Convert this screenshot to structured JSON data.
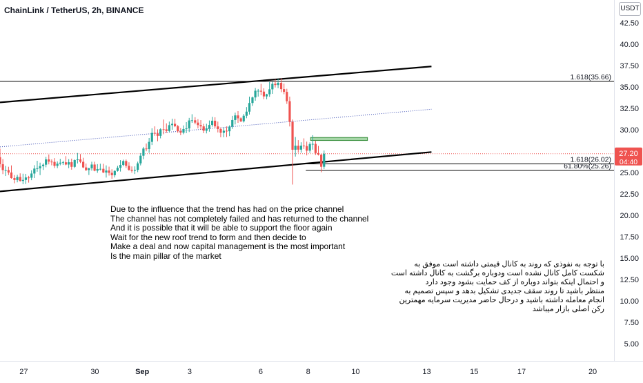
{
  "header": {
    "title": "ChainLink / TetherUS, 2h, BINANCE",
    "currency_button": "USDT"
  },
  "colors": {
    "bull": "#26a69a",
    "bear": "#ef5350",
    "channel": "#000000",
    "midline": "#3f51b5",
    "zone_fill": "#a5d6a7",
    "zone_border": "#388e3c",
    "current_price_bg": "#ef5350",
    "fib_line": "#000000"
  },
  "annotations": {
    "english_note": "Due to the influence that the trend has had on the price channel\nThe channel has not completely failed and has returned to the channel\nAnd it is possible that it will be able to support the floor again\nWait for the new roof trend to form and then decide to\nMake a deal and now capital management is the most important\nIs the main pillar of the market",
    "persian_note": "با توجه به نفوذی که روند به کانال قیمتی داشته است موفق به\nشکست کامل کانال نشده است ودوباره برگشت به کانال داشته است\nو احتمال اینکه بتواند دوباره از کف حمایت بشود وجود دارد\nمنتظر باشید تا روند سقف جدیدی تشکیل بدهد و سپس تصمیم به\nانجام معامله داشته باشید و درحال حاضر مدیریت سرمایه مهمترین\nرکن اصلی بازار میباشد"
  },
  "chart_data": {
    "type": "candlestick",
    "symbol": "ChainLink / TetherUS",
    "interval": "2h",
    "exchange": "BINANCE",
    "quote": "USDT",
    "ylim": [
      3.0,
      45.0
    ],
    "x_range_days": [
      26.0,
      51.9
    ],
    "y_ticks": [
      5.0,
      7.5,
      10.0,
      12.5,
      15.0,
      17.5,
      20.0,
      22.5,
      25.0,
      27.5,
      30.0,
      32.5,
      35.0,
      37.5,
      40.0,
      42.5
    ],
    "x_ticks": [
      {
        "day": 27,
        "label": "27"
      },
      {
        "day": 30,
        "label": "30"
      },
      {
        "day": 32,
        "label": "Sep"
      },
      {
        "day": 34,
        "label": "3"
      },
      {
        "day": 37,
        "label": "6"
      },
      {
        "day": 39,
        "label": "8"
      },
      {
        "day": 41,
        "label": "10"
      },
      {
        "day": 44,
        "label": "13"
      },
      {
        "day": 46,
        "label": "15"
      },
      {
        "day": 48,
        "label": "17"
      },
      {
        "day": 51,
        "label": "20"
      }
    ],
    "current_price": {
      "value": 27.2,
      "label": "27.20",
      "countdown": "04:40"
    },
    "fib_levels": [
      {
        "label": "1.618(35.66)",
        "value": 35.66
      },
      {
        "label": "1.618(26.02)",
        "value": 26.02
      },
      {
        "label": "61.80%(25.26)",
        "value": 25.26
      }
    ],
    "channel": {
      "upper": [
        [
          26.0,
          33.2
        ],
        [
          44.2,
          37.4
        ]
      ],
      "lower": [
        [
          26.0,
          22.8
        ],
        [
          44.2,
          27.4
        ]
      ],
      "mid": [
        [
          26.0,
          28.0
        ],
        [
          44.2,
          32.4
        ]
      ]
    },
    "zone": {
      "day_from": 39.1,
      "day_to": 41.5,
      "low": 28.75,
      "high": 29.1
    },
    "candles": [
      [
        26.0,
        26.8,
        27.8,
        25.6,
        25.98
      ],
      [
        26.12,
        25.98,
        26.58,
        24.82,
        25.29
      ],
      [
        26.24,
        25.29,
        25.79,
        24.6,
        25.29
      ],
      [
        26.36,
        25.29,
        25.68,
        24.72,
        25.01
      ],
      [
        26.48,
        25.01,
        25.84,
        24.29,
        24.36
      ],
      [
        26.61,
        24.36,
        24.71,
        23.75,
        24.13
      ],
      [
        26.73,
        24.13,
        24.74,
        23.86,
        24.49
      ],
      [
        26.85,
        24.49,
        24.91,
        23.95,
        24.02
      ],
      [
        26.97,
        24.02,
        24.87,
        23.64,
        24.14
      ],
      [
        27.09,
        24.14,
        24.85,
        23.67,
        24.43
      ],
      [
        27.21,
        24.43,
        24.62,
        23.83,
        24.4
      ],
      [
        27.33,
        24.4,
        25.27,
        24.11,
        24.89
      ],
      [
        27.45,
        24.89,
        25.86,
        24.36,
        25.47
      ],
      [
        27.57,
        25.47,
        26.38,
        25.1,
        25.5
      ],
      [
        27.69,
        25.5,
        26.16,
        24.7,
        25.75
      ],
      [
        27.82,
        25.75,
        26.09,
        25.31,
        25.92
      ],
      [
        27.94,
        25.92,
        26.84,
        25.62,
        26.54
      ],
      [
        28.06,
        26.54,
        27.12,
        25.96,
        26.28
      ],
      [
        28.18,
        26.28,
        26.54,
        25.85,
        26.25
      ],
      [
        28.3,
        26.25,
        26.69,
        25.53,
        25.79
      ],
      [
        28.42,
        25.79,
        26.31,
        25.52,
        26.04
      ],
      [
        28.54,
        26.04,
        26.61,
        25.85,
        26.16
      ],
      [
        28.66,
        26.16,
        26.39,
        25.89,
        26.2
      ],
      [
        28.78,
        26.2,
        26.92,
        25.85,
        25.94
      ],
      [
        28.9,
        25.94,
        26.57,
        25.52,
        26.21
      ],
      [
        29.02,
        26.21,
        26.63,
        25.34,
        25.67
      ],
      [
        29.15,
        25.67,
        26.53,
        25.54,
        26.46
      ],
      [
        29.27,
        26.46,
        27.29,
        26.07,
        26.54
      ],
      [
        29.39,
        26.54,
        27.16,
        26.11,
        26.26
      ],
      [
        29.51,
        26.26,
        26.73,
        25.52,
        25.6
      ],
      [
        29.63,
        25.6,
        26.06,
        25.17,
        25.3
      ],
      [
        29.75,
        25.3,
        25.56,
        24.72,
        25.51
      ],
      [
        29.87,
        25.51,
        26.27,
        25.23,
        25.94
      ],
      [
        29.99,
        25.94,
        26.27,
        25.15,
        25.22
      ],
      [
        30.11,
        25.22,
        25.99,
        24.97,
        25.41
      ],
      [
        30.23,
        25.41,
        26.04,
        25.25,
        25.44
      ],
      [
        30.36,
        25.44,
        26.03,
        24.94,
        25.01
      ],
      [
        30.48,
        25.01,
        25.84,
        24.42,
        25.24
      ],
      [
        30.6,
        25.24,
        25.69,
        24.65,
        24.97
      ],
      [
        30.72,
        24.97,
        25.39,
        24.28,
        24.69
      ],
      [
        30.84,
        24.69,
        25.27,
        24.43,
        25.2
      ],
      [
        30.96,
        25.2,
        25.79,
        25.11,
        25.56
      ],
      [
        31.08,
        25.56,
        26.45,
        25.12,
        25.89
      ],
      [
        31.2,
        25.89,
        26.51,
        25.74,
        26.35
      ],
      [
        31.32,
        26.35,
        26.53,
        25.54,
        25.79
      ],
      [
        31.44,
        25.79,
        26.2,
        25.21,
        25.33
      ],
      [
        31.56,
        25.33,
        25.72,
        24.99,
        25.22
      ],
      [
        31.69,
        25.22,
        25.73,
        24.83,
        25.32
      ],
      [
        31.81,
        25.32,
        26.28,
        25.05,
        26.08
      ],
      [
        31.93,
        26.08,
        27.28,
        25.84,
        26.97
      ],
      [
        32.05,
        26.97,
        28.0,
        26.56,
        27.81
      ],
      [
        32.17,
        27.81,
        28.4,
        27.49,
        27.75
      ],
      [
        32.29,
        27.75,
        29.04,
        27.31,
        28.59
      ],
      [
        32.41,
        28.59,
        30.17,
        28.22,
        29.64
      ],
      [
        32.53,
        29.64,
        30.4,
        29.3,
        29.58
      ],
      [
        32.65,
        29.58,
        30.05,
        28.66,
        29.29
      ],
      [
        32.77,
        29.29,
        30.17,
        29.0,
        30.06
      ],
      [
        32.9,
        30.06,
        31.2,
        29.48,
        30.05
      ],
      [
        33.02,
        30.05,
        30.75,
        29.63,
        29.86
      ],
      [
        33.14,
        29.86,
        30.96,
        29.68,
        30.54
      ],
      [
        33.26,
        30.54,
        31.3,
        30.0,
        30.7
      ],
      [
        33.38,
        30.7,
        31.29,
        30.31,
        30.41
      ],
      [
        33.5,
        30.41,
        30.57,
        29.64,
        29.83
      ],
      [
        33.62,
        29.83,
        30.2,
        29.37,
        29.66
      ],
      [
        33.74,
        29.66,
        30.51,
        29.48,
        30.09
      ],
      [
        33.86,
        30.09,
        30.89,
        29.6,
        30.16
      ],
      [
        33.98,
        30.16,
        31.39,
        29.74,
        31.09
      ],
      [
        34.1,
        31.09,
        31.82,
        30.81,
        31.11
      ],
      [
        34.23,
        31.11,
        31.47,
        30.64,
        30.84
      ],
      [
        34.35,
        30.84,
        31.24,
        30.16,
        30.55
      ],
      [
        34.47,
        30.55,
        31.13,
        30.01,
        30.4
      ],
      [
        34.59,
        30.4,
        30.7,
        29.6,
        29.89
      ],
      [
        34.71,
        29.89,
        30.7,
        29.58,
        30.16
      ],
      [
        34.83,
        30.16,
        31.09,
        29.78,
        30.56
      ],
      [
        34.95,
        30.56,
        31.51,
        30.36,
        31.06
      ],
      [
        35.07,
        31.06,
        31.46,
        30.2,
        30.4
      ],
      [
        35.19,
        30.4,
        30.96,
        29.69,
        30.09
      ],
      [
        35.31,
        30.09,
        30.28,
        29.13,
        29.65
      ],
      [
        35.44,
        29.65,
        30.26,
        29.13,
        29.89
      ],
      [
        35.56,
        29.89,
        30.39,
        29.15,
        29.83
      ],
      [
        35.68,
        29.83,
        30.52,
        29.26,
        30.37
      ],
      [
        35.8,
        30.37,
        31.63,
        30.11,
        31.14
      ],
      [
        35.92,
        31.14,
        32.0,
        30.62,
        31.68
      ],
      [
        36.04,
        31.68,
        32.18,
        30.81,
        31.34
      ],
      [
        36.16,
        31.34,
        31.45,
        30.89,
        30.99
      ],
      [
        36.28,
        30.99,
        31.85,
        30.85,
        31.64
      ],
      [
        36.4,
        31.64,
        32.65,
        31.35,
        32.12
      ],
      [
        36.52,
        32.12,
        33.87,
        31.78,
        33.13
      ],
      [
        36.65,
        33.13,
        33.88,
        32.79,
        33.78
      ],
      [
        36.77,
        33.78,
        34.88,
        33.4,
        34.56
      ],
      [
        36.89,
        34.56,
        34.77,
        33.88,
        34.56
      ],
      [
        37.01,
        34.56,
        35.36,
        34.03,
        34.46
      ],
      [
        37.13,
        34.46,
        34.85,
        33.57,
        33.9
      ],
      [
        37.25,
        33.9,
        34.21,
        33.56,
        34.15
      ],
      [
        37.37,
        34.15,
        35.58,
        33.85,
        34.73
      ],
      [
        37.49,
        34.73,
        35.62,
        34.2,
        35.37
      ],
      [
        37.61,
        35.37,
        35.88,
        34.94,
        35.23
      ],
      [
        37.73,
        35.23,
        35.96,
        34.86,
        35.49
      ],
      [
        37.86,
        35.49,
        36.0,
        34.39,
        34.75
      ],
      [
        37.98,
        34.75,
        35.4,
        34.15,
        34.43
      ],
      [
        38.1,
        34.43,
        34.79,
        33.02,
        33.34
      ],
      [
        38.22,
        33.34,
        33.87,
        30.39,
        30.93
      ],
      [
        38.34,
        30.93,
        31.2,
        23.6,
        27.67
      ],
      [
        38.46,
        27.67,
        29.16,
        26.87,
        28.14
      ],
      [
        38.58,
        28.14,
        28.79,
        27.32,
        27.68
      ],
      [
        38.7,
        27.68,
        28.54,
        27.33,
        28.15
      ],
      [
        38.82,
        28.15,
        29.0,
        27.76,
        28.1
      ],
      [
        38.94,
        28.1,
        28.62,
        27.01,
        27.56
      ],
      [
        39.07,
        27.56,
        28.53,
        27.3,
        28.33
      ],
      [
        39.19,
        28.33,
        29.37,
        27.68,
        28.35
      ],
      [
        39.31,
        28.35,
        28.72,
        27.06,
        27.28
      ],
      [
        39.43,
        27.28,
        28.12,
        27.0,
        27.1
      ],
      [
        39.55,
        27.1,
        27.2,
        25.04,
        25.68
      ],
      [
        39.67,
        25.68,
        27.58,
        25.42,
        27.2
      ]
    ]
  }
}
